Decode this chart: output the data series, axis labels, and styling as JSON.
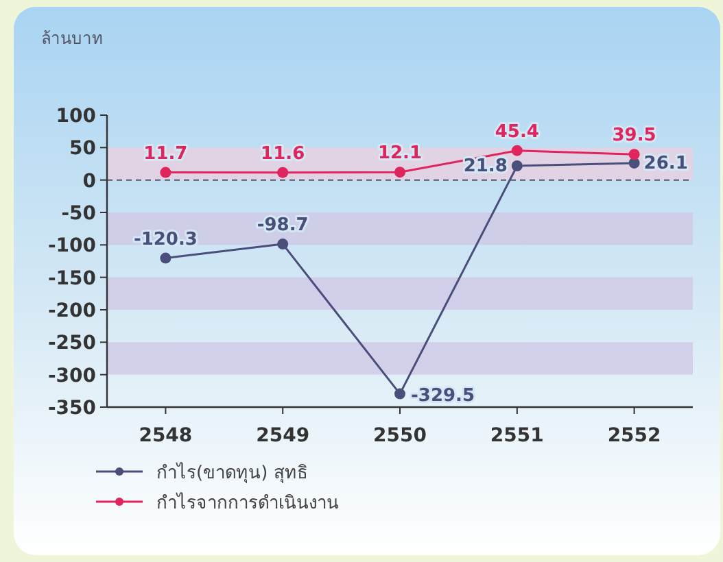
{
  "chart_data": {
    "type": "line",
    "ylabel": "ล้านบาท",
    "categories": [
      "2548",
      "2549",
      "2550",
      "2551",
      "2552"
    ],
    "series": [
      {
        "name": "กำไร(ขาดทุน) สุทธิ",
        "color": "#4a4e7a",
        "values": [
          -120.3,
          -98.7,
          -329.5,
          21.8,
          26.1
        ]
      },
      {
        "name": "กำไรจากการดำเนินงาน",
        "color": "#e0245e",
        "values": [
          11.7,
          11.6,
          12.1,
          45.4,
          39.5
        ]
      }
    ],
    "ylim": [
      -350,
      100
    ],
    "yticks": [
      -350,
      -300,
      -250,
      -200,
      -150,
      -100,
      -50,
      0,
      50,
      100
    ],
    "bands": [
      {
        "axis": "y",
        "from": 0,
        "to": 50,
        "color": "#e9cfe0"
      },
      {
        "axis": "y",
        "from": -100,
        "to": -50,
        "color": "#cfc8e6"
      },
      {
        "axis": "y",
        "from": -200,
        "to": -150,
        "color": "#cfc8e6"
      },
      {
        "axis": "y",
        "from": -300,
        "to": -250,
        "color": "#cfc8e6"
      }
    ],
    "ref_lines": [
      {
        "axis": "y",
        "value": 0,
        "color": "#555566",
        "line_style": "dashed"
      }
    ],
    "data_labels": true,
    "marker": "circle",
    "line_style": "solid",
    "grid": false,
    "legend": "bottom left"
  }
}
